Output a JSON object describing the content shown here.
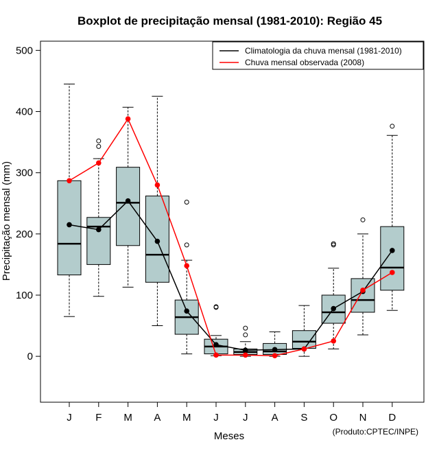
{
  "chart_data": {
    "type": "boxplot",
    "title": "Boxplot de precipitação mensal (1981-2010): Região 45",
    "xlabel": "Meses",
    "ylabel": "Precipitação mensal (mm)",
    "ylim": [
      -75,
      515
    ],
    "yticks": [
      0,
      100,
      200,
      300,
      400,
      500
    ],
    "categories": [
      "J",
      "F",
      "M",
      "A",
      "M",
      "J",
      "J",
      "A",
      "S",
      "O",
      "N",
      "D"
    ],
    "boxes": [
      {
        "min": 65,
        "q1": 133,
        "median": 184,
        "q3": 287,
        "max": 445,
        "outliers": []
      },
      {
        "min": 98,
        "q1": 150,
        "median": 212,
        "q3": 227,
        "max": 323,
        "outliers": [
          343,
          352
        ]
      },
      {
        "min": 113,
        "q1": 181,
        "median": 251,
        "q3": 309,
        "max": 407,
        "outliers": []
      },
      {
        "min": 50,
        "q1": 121,
        "median": 166,
        "q3": 262,
        "max": 425,
        "outliers": []
      },
      {
        "min": 4,
        "q1": 36,
        "median": 64,
        "q3": 92,
        "max": 157,
        "outliers": [
          182,
          252
        ]
      },
      {
        "min": 1,
        "q1": 4,
        "median": 16,
        "q3": 28,
        "max": 34,
        "outliers": [
          80,
          81
        ]
      },
      {
        "min": 0,
        "q1": 3,
        "median": 7,
        "q3": 12,
        "max": 24,
        "outliers": [
          35,
          46
        ]
      },
      {
        "min": 0,
        "q1": 3,
        "median": 8,
        "q3": 21,
        "max": 40,
        "outliers": []
      },
      {
        "min": 0,
        "q1": 13,
        "median": 24,
        "q3": 42,
        "max": 83,
        "outliers": []
      },
      {
        "min": 12,
        "q1": 54,
        "median": 72,
        "q3": 100,
        "max": 144,
        "outliers": [
          182,
          184
        ]
      },
      {
        "min": 35,
        "q1": 72,
        "median": 92,
        "q3": 127,
        "max": 200,
        "outliers": [
          223
        ]
      },
      {
        "min": 75,
        "q1": 108,
        "median": 145,
        "q3": 212,
        "max": 361,
        "outliers": [
          376
        ]
      }
    ],
    "series": [
      {
        "name": "Climatologia da chuva mensal (1981-2010)",
        "color": "#000000",
        "values": [
          215,
          207,
          254,
          188,
          74,
          19,
          10,
          11,
          12,
          78,
          106,
          173
        ]
      },
      {
        "name": "Chuva mensal observada (2008)",
        "color": "#ff0000",
        "values": [
          287,
          316,
          388,
          280,
          148,
          2,
          2,
          1,
          12,
          25,
          108,
          137
        ]
      }
    ],
    "box_color": "#b3cccc",
    "legend_position": "top-right",
    "credit": "(Produto:CPTEC/INPE)"
  }
}
